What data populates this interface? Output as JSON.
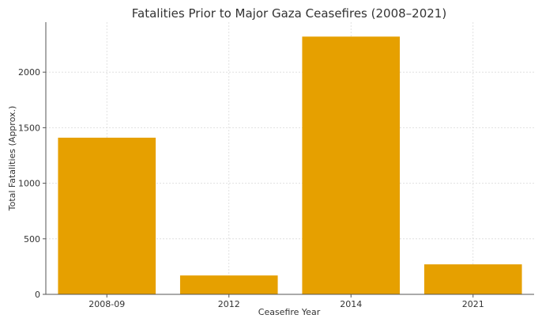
{
  "chart_data": {
    "type": "bar",
    "title": "Fatalities Prior to Major Gaza Ceasefires (2008–2021)",
    "xlabel": "Ceasefire Year",
    "ylabel": "Total Fatalities (Approx.)",
    "categories": [
      "2008-09",
      "2012",
      "2014",
      "2021"
    ],
    "values": [
      1410,
      170,
      2320,
      270
    ],
    "ylim": [
      0,
      2450
    ],
    "yticks": [
      0,
      500,
      1000,
      1500,
      2000
    ],
    "grid": true,
    "bar_color": "#e6a000",
    "grid_color": "#d9d9d9",
    "axis_color": "#555555"
  }
}
